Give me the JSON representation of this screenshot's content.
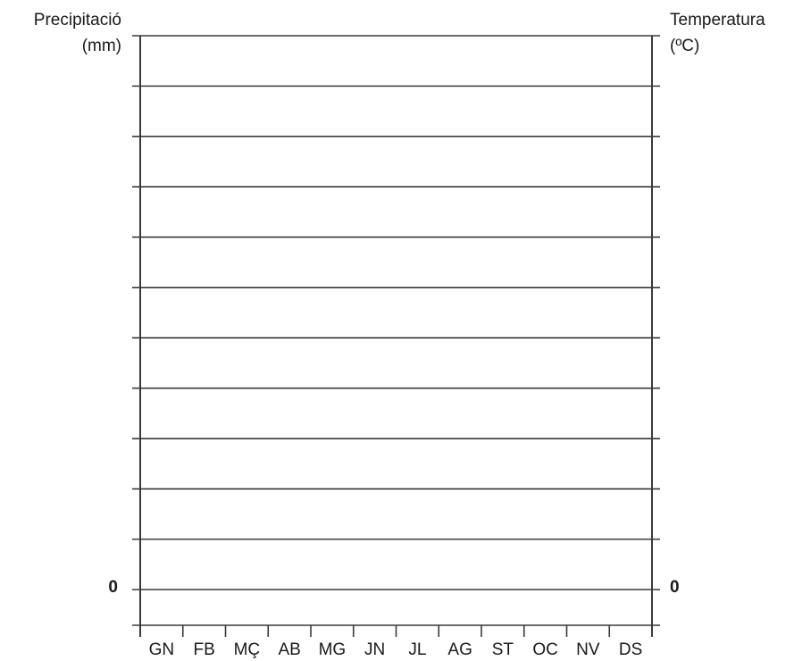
{
  "chart_data": {
    "type": "line",
    "title": "",
    "left_axis": {
      "label_line1": "Precipitació",
      "label_line2": "(mm)",
      "zero_label": "0"
    },
    "right_axis": {
      "label_line1": "Temperatura",
      "label_line2": "(ºC)",
      "zero_label": "0"
    },
    "categories": [
      "GN",
      "FB",
      "MÇ",
      "AB",
      "MG",
      "JN",
      "JL",
      "AG",
      "ST",
      "OC",
      "NV",
      "DS"
    ],
    "series": [],
    "horizontal_gridlines": 12,
    "gridlines_above_zero": 11,
    "gridlines_below_zero": 0,
    "grid": true
  }
}
